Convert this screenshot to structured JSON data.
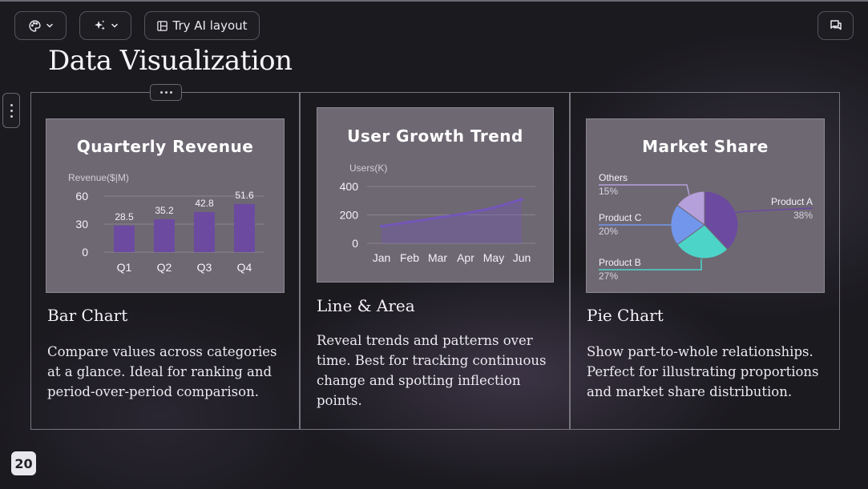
{
  "toolbar": {
    "ai_layout_label": "Try AI layout"
  },
  "slide": {
    "title": "Data Visualization",
    "page_number": "20",
    "columns": [
      {
        "heading": "Bar Chart",
        "description": "Compare values across categories at a glance. Ideal for ranking and period-over-period comparison."
      },
      {
        "heading": "Line & Area",
        "description": "Reveal trends and patterns over time. Best for tracking continuous change and spotting inflection points."
      },
      {
        "heading": "Pie Chart",
        "description": "Show part-to-whole relationships. Perfect for illustrating proportions and market share distribution."
      }
    ]
  },
  "colors": {
    "bar": "#6c4aa0",
    "line": "#7356b8",
    "slice_a": "#6c4aa0",
    "slice_b": "#4dd4c8",
    "slice_c": "#7296ec",
    "slice_others": "#b5a0dc"
  },
  "chart_data": [
    {
      "type": "bar",
      "title": "Quarterly Revenue",
      "ylabel": "Revenue($|M)",
      "categories": [
        "Q1",
        "Q2",
        "Q3",
        "Q4"
      ],
      "values": [
        28.5,
        35.2,
        42.8,
        51.6
      ],
      "value_labels": [
        "28.5",
        "35.2",
        "42.8",
        "51.6"
      ],
      "yticks": [
        "0",
        "30",
        "60"
      ],
      "ylim": [
        0,
        60
      ]
    },
    {
      "type": "area",
      "title": "User Growth Trend",
      "ylabel": "Users(K)",
      "categories": [
        "Jan",
        "Feb",
        "Mar",
        "Apr",
        "May",
        "Jun"
      ],
      "values": [
        120,
        150,
        180,
        210,
        250,
        310
      ],
      "yticks": [
        "0",
        "200",
        "400"
      ],
      "ylim": [
        0,
        400
      ]
    },
    {
      "type": "pie",
      "title": "Market Share",
      "slices": [
        {
          "label": "Product A",
          "percent_label": "38%",
          "value": 38
        },
        {
          "label": "Product B",
          "percent_label": "27%",
          "value": 27
        },
        {
          "label": "Product C",
          "percent_label": "20%",
          "value": 20
        },
        {
          "label": "Others",
          "percent_label": "15%",
          "value": 15
        }
      ]
    }
  ]
}
